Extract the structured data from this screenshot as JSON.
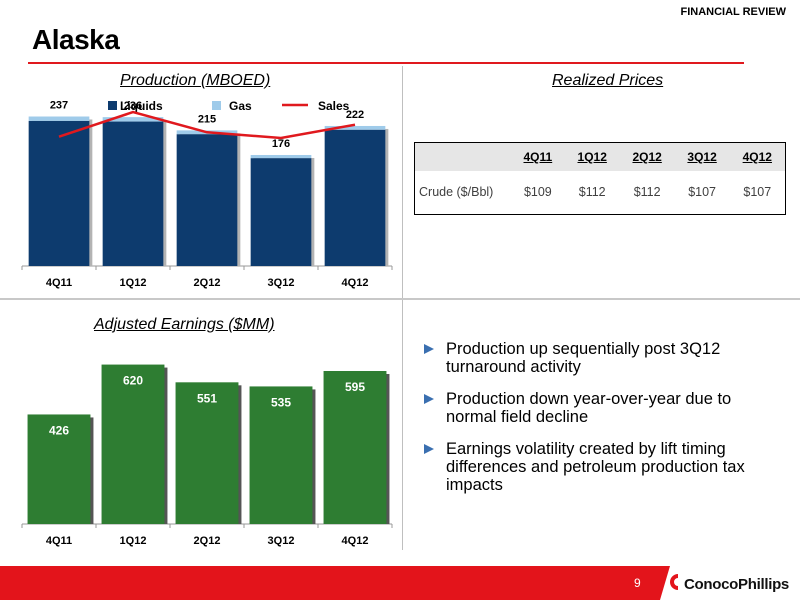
{
  "header": {
    "tag": "FINANCIAL REVIEW",
    "title": "Alaska"
  },
  "production": {
    "title": "Production (MBOED)",
    "legend": {
      "liquids": "Liquids",
      "gas": "Gas",
      "sales": "Sales"
    },
    "colors": {
      "liquids": "#0d3b6e",
      "gas": "#9fcbea",
      "sales": "#e0191e"
    }
  },
  "prices": {
    "title": "Realized Prices",
    "columns": [
      "4Q11",
      "1Q12",
      "2Q12",
      "3Q12",
      "4Q12"
    ],
    "row_label": "Crude ($/Bbl)",
    "row_values": [
      "$109",
      "$112",
      "$112",
      "$107",
      "$107"
    ]
  },
  "earnings": {
    "title": "Adjusted Earnings ($MM)",
    "colors": {
      "bar": "#2e7d32"
    }
  },
  "bullets": [
    "Production up sequentially post 3Q12 turnaround activity",
    "Production down year-over-year due to normal field decline",
    "Earnings volatility created by lift timing differences and petroleum production tax impacts"
  ],
  "footer": {
    "page": "9",
    "logo": "ConocoPhillips"
  },
  "chart_data": [
    {
      "type": "bar",
      "title": "Production (MBOED)",
      "categories": [
        "4Q11",
        "1Q12",
        "2Q12",
        "3Q12",
        "4Q12"
      ],
      "stacked": true,
      "totals": [
        237,
        236,
        215,
        176,
        222
      ],
      "series": [
        {
          "name": "Liquids",
          "values": [
            230,
            229,
            209,
            171,
            216
          ]
        },
        {
          "name": "Gas",
          "values": [
            7,
            7,
            6,
            5,
            6
          ]
        },
        {
          "name": "Sales",
          "type": "line",
          "values": [
            205,
            244,
            212,
            203,
            224
          ]
        }
      ],
      "ylim": [
        0,
        260
      ],
      "legend": "top"
    },
    {
      "type": "bar",
      "title": "Adjusted Earnings ($MM)",
      "categories": [
        "4Q11",
        "1Q12",
        "2Q12",
        "3Q12",
        "4Q12"
      ],
      "values": [
        426,
        620,
        551,
        535,
        595
      ],
      "ylim": [
        0,
        700
      ]
    }
  ]
}
